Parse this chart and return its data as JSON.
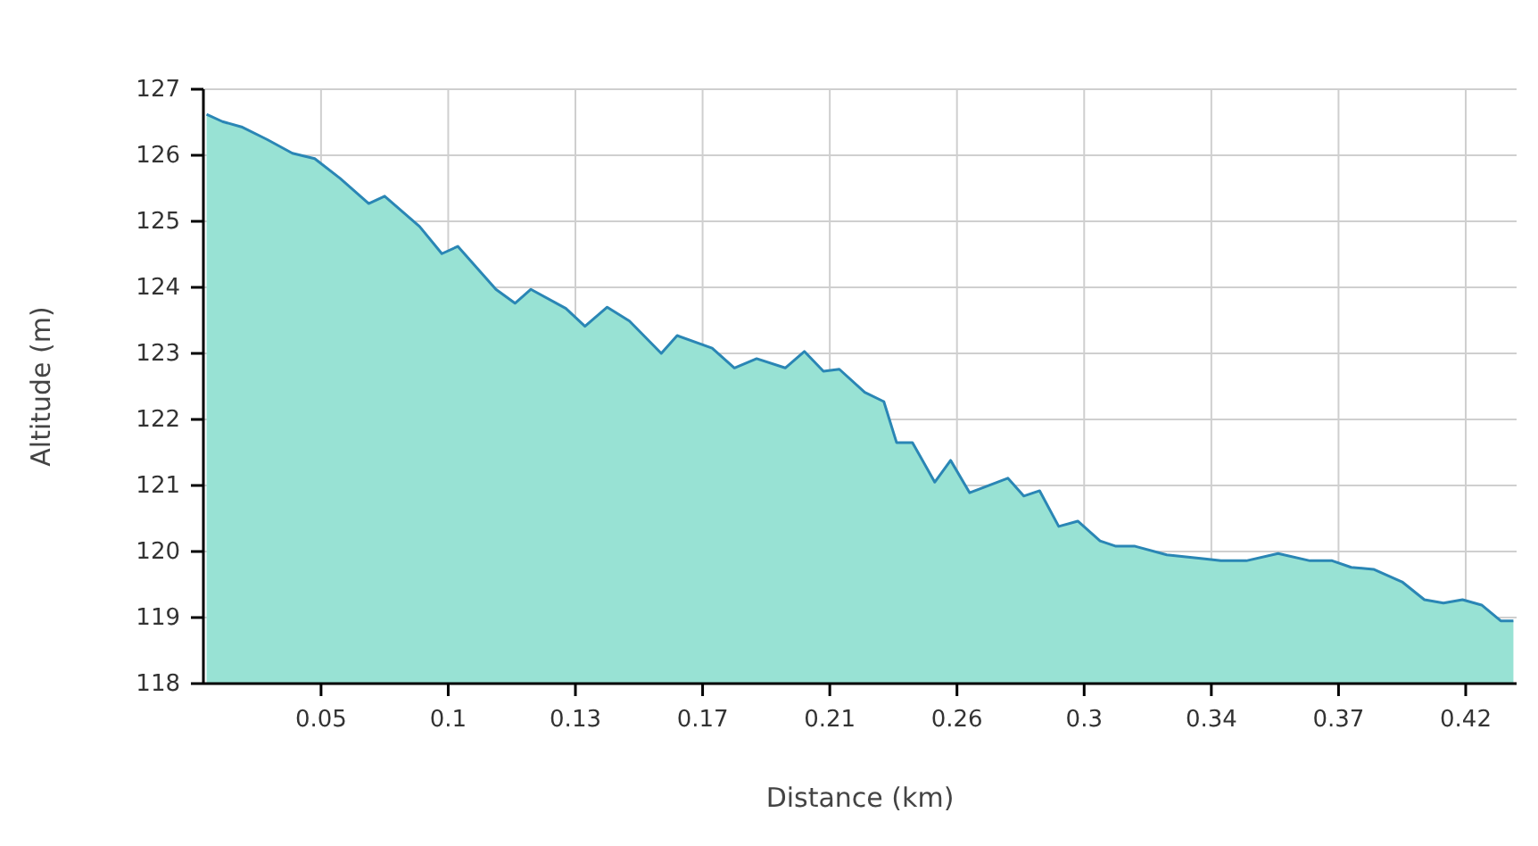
{
  "chart_data": {
    "type": "area",
    "xlabel": "Distance (km)",
    "ylabel": "Altitude (m)",
    "xlim": [
      0.018,
      0.431
    ],
    "ylim": [
      118,
      127
    ],
    "xticks": [
      {
        "value": 0.055,
        "label": "0.05"
      },
      {
        "value": 0.095,
        "label": "0.1"
      },
      {
        "value": 0.135,
        "label": "0.13"
      },
      {
        "value": 0.175,
        "label": "0.17"
      },
      {
        "value": 0.215,
        "label": "0.21"
      },
      {
        "value": 0.255,
        "label": "0.26"
      },
      {
        "value": 0.295,
        "label": "0.3"
      },
      {
        "value": 0.335,
        "label": "0.34"
      },
      {
        "value": 0.375,
        "label": "0.37"
      },
      {
        "value": 0.415,
        "label": "0.42"
      }
    ],
    "yticks": [
      118,
      119,
      120,
      121,
      122,
      123,
      124,
      125,
      126,
      127
    ],
    "grid": true,
    "series": [
      {
        "color": "#2a86b5",
        "x": [
          0.019,
          0.024,
          0.03,
          0.038,
          0.046,
          0.053,
          0.061,
          0.07,
          0.075,
          0.086,
          0.093,
          0.098,
          0.11,
          0.116,
          0.121,
          0.132,
          0.138,
          0.145,
          0.152,
          0.162,
          0.167,
          0.178,
          0.185,
          0.192,
          0.201,
          0.207,
          0.213,
          0.218,
          0.226,
          0.232,
          0.236,
          0.241,
          0.248,
          0.253,
          0.259,
          0.271,
          0.276,
          0.281,
          0.287,
          0.293,
          0.3,
          0.305,
          0.311,
          0.321,
          0.333,
          0.338,
          0.346,
          0.356,
          0.366,
          0.373,
          0.379,
          0.386,
          0.395,
          0.402,
          0.408,
          0.414,
          0.42,
          0.426,
          0.43
        ],
        "values": [
          126.62,
          126.51,
          126.43,
          126.24,
          126.03,
          125.95,
          125.65,
          125.27,
          125.38,
          124.92,
          124.51,
          124.62,
          123.97,
          123.76,
          123.97,
          123.68,
          123.41,
          123.7,
          123.49,
          123.0,
          123.27,
          123.08,
          122.78,
          122.92,
          122.78,
          123.03,
          122.73,
          122.76,
          122.41,
          122.27,
          121.65,
          121.65,
          121.05,
          121.38,
          120.89,
          121.11,
          120.84,
          120.92,
          120.38,
          120.46,
          120.16,
          120.08,
          120.08,
          119.95,
          119.89,
          119.86,
          119.86,
          119.97,
          119.86,
          119.86,
          119.76,
          119.73,
          119.54,
          119.27,
          119.22,
          119.27,
          119.19,
          118.95,
          118.95
        ]
      }
    ]
  }
}
